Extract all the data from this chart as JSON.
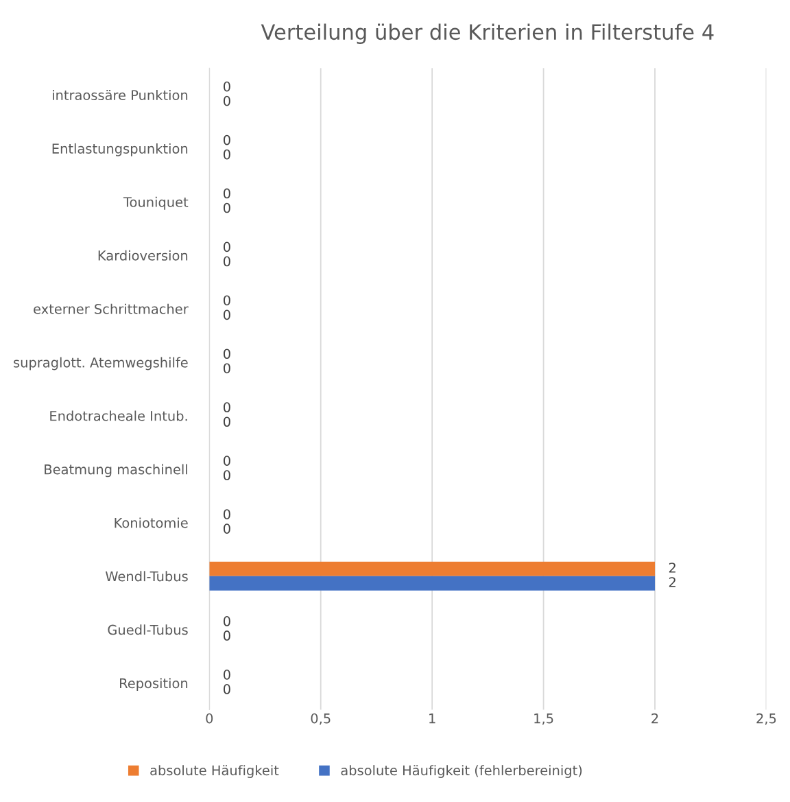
{
  "chart_data": {
    "type": "bar",
    "orientation": "horizontal",
    "title": "Verteilung über die Kriterien in Filterstufe 4",
    "categories": [
      "intraossäre Punktion",
      "Entlastungspunktion",
      "Touniquet",
      "Kardioversion",
      "externer Schrittmacher",
      "supraglott. Atemwegshilfe",
      "Endotracheale Intub.",
      "Beatmung maschinell",
      "Koniotomie",
      "Wendl-Tubus",
      "Guedl-Tubus",
      "Reposition"
    ],
    "series": [
      {
        "name": "absolute Häufigkeit",
        "color": "#ed7d31",
        "values": [
          0,
          0,
          0,
          0,
          0,
          0,
          0,
          0,
          0,
          2,
          0,
          0
        ]
      },
      {
        "name": "absolute Häufigkeit (fehlerbereinigt)",
        "color": "#4472c4",
        "values": [
          0,
          0,
          0,
          0,
          0,
          0,
          0,
          0,
          0,
          2,
          0,
          0
        ]
      }
    ],
    "xlim": [
      0,
      2.5
    ],
    "xticks": [
      0,
      {
        "value": 0.5,
        "label": "0,5"
      },
      1,
      {
        "value": 1.5,
        "label": "1,5"
      },
      2,
      {
        "value": 2.5,
        "label": "2,5"
      }
    ],
    "grid": "x",
    "legend": "bottom",
    "data_labels": true
  }
}
